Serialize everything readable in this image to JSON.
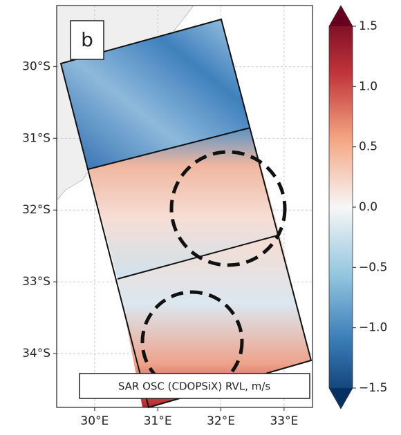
{
  "panel_label": "b",
  "map": {
    "xlim": [
      29.4,
      33.45
    ],
    "ylim": [
      -34.75,
      -29.15
    ],
    "xticks": [
      {
        "value": 30,
        "label": "30°E"
      },
      {
        "value": 31,
        "label": "31°E"
      },
      {
        "value": 32,
        "label": "32°E"
      },
      {
        "value": 33,
        "label": "33°E"
      }
    ],
    "yticks": [
      {
        "value": -30,
        "label": "30°S"
      },
      {
        "value": -31,
        "label": "31°S"
      },
      {
        "value": -32,
        "label": "32°S"
      },
      {
        "value": -33,
        "label": "33°S"
      },
      {
        "value": -34,
        "label": "34°S"
      }
    ],
    "grid": true
  },
  "annotation": "SAR OSC (CDOPSiX) RVL, m/s",
  "colorbar": {
    "lim": [
      -1.5,
      1.5
    ],
    "ticks": [
      1.5,
      {
        "value": 1.0,
        "label": "1.0"
      },
      0.5,
      {
        "value": 0.0,
        "label": "0.0"
      },
      {
        "value": -0.5,
        "label": "−0.5"
      },
      {
        "value": -1.0,
        "label": "−1.0"
      },
      {
        "value": -1.5,
        "label": "−1.5"
      }
    ]
  }
}
